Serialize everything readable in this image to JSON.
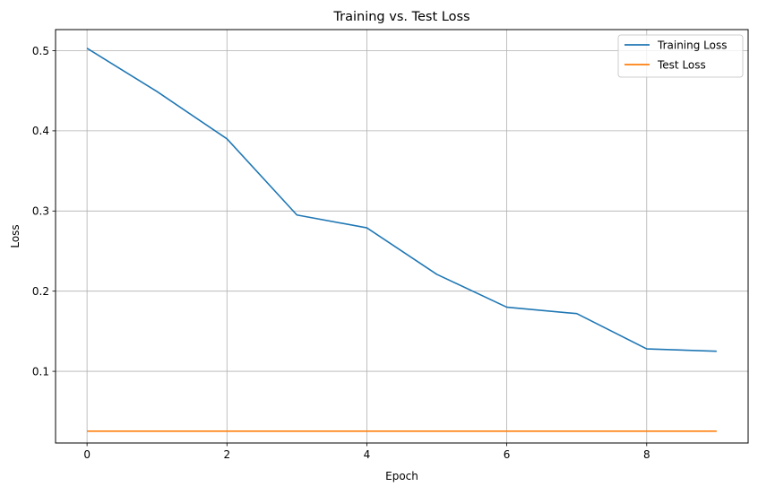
{
  "chart_data": {
    "type": "line",
    "title": "Training vs. Test Loss",
    "xlabel": "Epoch",
    "ylabel": "Loss",
    "xlim": [
      -0.45,
      9.45
    ],
    "ylim": [
      0.0106,
      0.5263
    ],
    "xticks": [
      0,
      2,
      4,
      6,
      8
    ],
    "yticks": [
      0.1,
      0.2,
      0.3,
      0.4,
      0.5
    ],
    "ytick_labels": [
      "0.1",
      "0.2",
      "0.3",
      "0.4",
      "0.5"
    ],
    "grid": true,
    "legend_position": "top-right",
    "x": [
      0,
      1,
      2,
      3,
      4,
      5,
      6,
      7,
      8,
      9
    ],
    "series": [
      {
        "name": "Training Loss",
        "color": "#1f77b4",
        "values": [
          0.503,
          0.449,
          0.39,
          0.295,
          0.279,
          0.221,
          0.18,
          0.172,
          0.128,
          0.125
        ]
      },
      {
        "name": "Test Loss",
        "color": "#ff7f0e",
        "values": [
          0.0253,
          0.0253,
          0.0253,
          0.0253,
          0.0253,
          0.0253,
          0.0253,
          0.0253,
          0.0253,
          0.0253
        ]
      }
    ]
  }
}
